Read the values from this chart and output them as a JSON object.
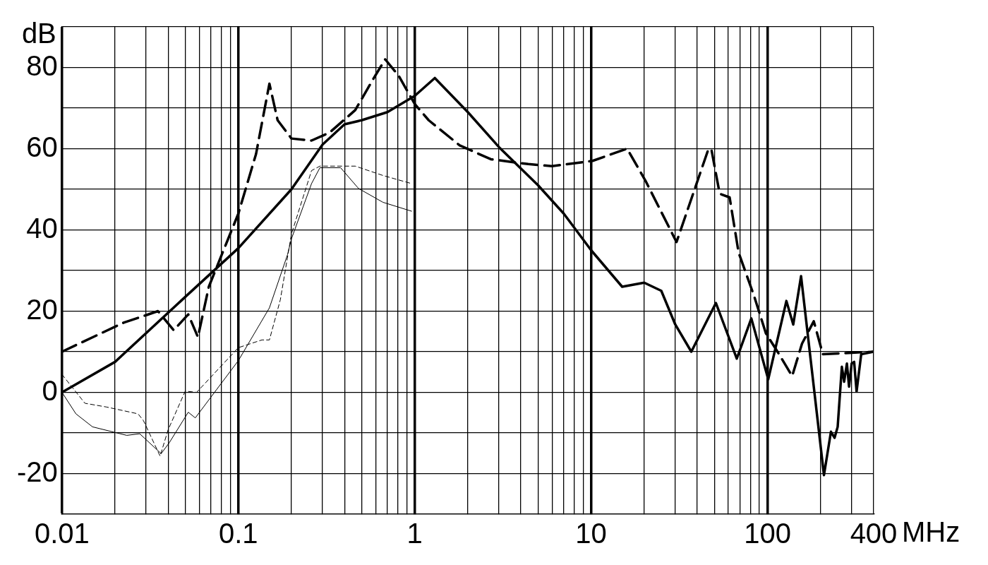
{
  "chart_data": {
    "type": "line",
    "xlabel": "MHz",
    "ylabel": "dB",
    "log": "x",
    "grid": true,
    "legend": false,
    "marker": "none",
    "xlim": [
      0.01,
      400
    ],
    "xticks": [
      0.01,
      {
        "value": 0.02,
        "label": null
      },
      {
        "value": 0.03,
        "label": null
      },
      {
        "value": 0.04,
        "label": null
      },
      {
        "value": 0.05,
        "label": null
      },
      {
        "value": 0.06,
        "label": null
      },
      {
        "value": 0.07,
        "label": null
      },
      {
        "value": 0.08,
        "label": null
      },
      {
        "value": 0.09,
        "label": null
      },
      0.1,
      {
        "value": 0.2,
        "label": null
      },
      {
        "value": 0.3,
        "label": null
      },
      {
        "value": 0.4,
        "label": null
      },
      {
        "value": 0.5,
        "label": null
      },
      {
        "value": 0.6,
        "label": null
      },
      {
        "value": 0.7,
        "label": null
      },
      {
        "value": 0.8,
        "label": null
      },
      {
        "value": 0.9,
        "label": null
      },
      1,
      {
        "value": 2,
        "label": null
      },
      {
        "value": 3,
        "label": null
      },
      {
        "value": 4,
        "label": null
      },
      {
        "value": 5,
        "label": null
      },
      {
        "value": 6,
        "label": null
      },
      {
        "value": 7,
        "label": null
      },
      {
        "value": 8,
        "label": null
      },
      {
        "value": 9,
        "label": null
      },
      10,
      {
        "value": 20,
        "label": null
      },
      {
        "value": 30,
        "label": null
      },
      {
        "value": 40,
        "label": null
      },
      {
        "value": 50,
        "label": null
      },
      {
        "value": 60,
        "label": null
      },
      {
        "value": 70,
        "label": null
      },
      {
        "value": 80,
        "label": null
      },
      {
        "value": 90,
        "label": null
      },
      100,
      {
        "value": 200,
        "label": null
      },
      {
        "value": 300,
        "label": null
      },
      400
    ],
    "ylim": [
      -30,
      90
    ],
    "yticks": [
      {
        "value": -30,
        "label": null
      },
      -20,
      {
        "value": -10,
        "label": null
      },
      0,
      {
        "value": 10,
        "label": null
      },
      20,
      {
        "value": 30,
        "label": null
      },
      40,
      {
        "value": 50,
        "label": null
      },
      60,
      {
        "value": 70,
        "label": null
      },
      80,
      {
        "value": 90,
        "label": null
      }
    ],
    "series": [
      {
        "color": "#000000",
        "line_style": "solid",
        "x": [
          0.01,
          0.02,
          0.05,
          0.1,
          0.2,
          0.3,
          0.4,
          0.5,
          0.7,
          1,
          1.3,
          2,
          3,
          5,
          7,
          10,
          15,
          20,
          25,
          30,
          37,
          51,
          67,
          81,
          101,
          128,
          140,
          155,
          209,
          229,
          240,
          250,
          264,
          272,
          282,
          290,
          300,
          310,
          320,
          340,
          400
        ],
        "values": [
          0,
          7.5,
          23.5,
          35.5,
          50,
          61,
          66,
          67,
          69,
          73,
          77.4,
          69,
          60.4,
          51,
          44,
          35,
          26,
          27,
          25,
          16.7,
          10,
          22,
          8.3,
          18.2,
          3.2,
          22.5,
          16.7,
          28.6,
          -20.4,
          -9.7,
          -11.2,
          -8.5,
          6.3,
          2.6,
          7.1,
          1.4,
          7.1,
          7.5,
          0.2,
          9.4,
          10
        ]
      },
      {
        "color": "#000000",
        "line_style": "dashed",
        "x": [
          0.01,
          0.0225,
          0.03,
          0.035,
          0.043,
          0.052,
          0.059,
          0.068,
          0.1,
          0.126,
          0.15,
          0.167,
          0.2,
          0.26,
          0.33,
          0.46,
          0.59,
          0.68,
          0.81,
          1,
          1.2,
          1.8,
          2.7,
          4.4,
          6,
          10.2,
          16,
          20.4,
          30.5,
          46,
          48,
          53.6,
          61,
          68.6,
          84,
          98,
          114,
          138,
          157,
          183,
          206,
          400
        ],
        "values": [
          10,
          17.2,
          19,
          20,
          15.3,
          19.2,
          13.6,
          26,
          44,
          58.7,
          76,
          67,
          62.5,
          62,
          64,
          69.5,
          77.6,
          82,
          78,
          71,
          67,
          60.8,
          57.4,
          56.2,
          55.7,
          57,
          60,
          52,
          37,
          59.6,
          60,
          48.9,
          48,
          34.4,
          23.7,
          14.5,
          10,
          4,
          12,
          17.5,
          9.4,
          10
        ]
      },
      {
        "color": "#000000",
        "line_style": "solid",
        "x": [
          0.01,
          0.012,
          0.0149,
          0.0233,
          0.0276,
          0.0365,
          0.0406,
          0.052,
          0.057,
          0.1,
          0.15,
          0.19,
          0.2,
          0.26,
          0.29,
          0.38,
          0.48,
          0.66,
          0.96
        ],
        "values": [
          0,
          -5.3,
          -8.5,
          -10.6,
          -10.2,
          -15.1,
          -12.4,
          -4.9,
          -6.3,
          7.8,
          20.8,
          33.9,
          37.8,
          51.4,
          55.3,
          55.3,
          50.2,
          46.8,
          44.6
        ]
      },
      {
        "color": "#000000",
        "line_style": "dashed",
        "x": [
          0.01,
          0.0135,
          0.0178,
          0.027,
          0.029,
          0.036,
          0.04,
          0.05,
          0.058,
          0.1,
          0.136,
          0.15,
          0.173,
          0.2,
          0.26,
          0.29,
          0.46,
          0.66,
          0.96
        ],
        "values": [
          4.4,
          -2.7,
          -3.6,
          -5.3,
          -7,
          -15.7,
          -9.2,
          0.3,
          0,
          11,
          12.9,
          12.9,
          22.8,
          39,
          54.6,
          55.7,
          55.7,
          53.4,
          51.4
        ]
      }
    ]
  }
}
